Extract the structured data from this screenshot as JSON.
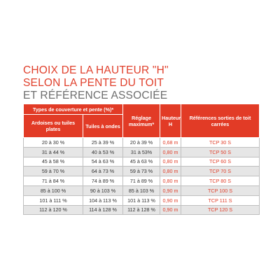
{
  "header": {
    "line1": "CHOIX DE LA HAUTEUR \"H\"",
    "line2": "SELON LA PENTE DU TOIT",
    "line3": "ET RÉFÉRENCE ASSOCIÉE"
  },
  "table": {
    "group_header": "Types de couverture et pente (%)*",
    "headers": [
      "Ardoises ou tuiles plates",
      "Tuiles à ondes",
      "Réglage maximum*",
      "Hauteur H",
      "Références sorties de toit carrées"
    ],
    "rows": [
      [
        "20 à 30 %",
        "25 à 39 %",
        "20 à 39 %",
        "0,68 m",
        "TCP 30 S"
      ],
      [
        "31 à 44 %",
        "40 à 53 %",
        "31 à 53%",
        "0,80 m",
        "TCP 50 S"
      ],
      [
        "45 à 58 %",
        "54 à 63 %",
        "45 à 63 %",
        "0,80 m",
        "TCP 60 S"
      ],
      [
        "59 à 70 %",
        "64 à 73 %",
        "59 à 73 %",
        "0,80 m",
        "TCP 70 S"
      ],
      [
        "71 à 84 %",
        "74 à 89 %",
        "71 à 89 %",
        "0,80 m",
        "TCP 80 S"
      ],
      [
        "85 à 100 %",
        "90 à 103 %",
        "85 à 103 %",
        "0,90 m",
        "TCP 100 S"
      ],
      [
        "101 à 111 %",
        "104 à 113 %",
        "101 à 113 %",
        "0,90 m",
        "TCP 111 S"
      ],
      [
        "112 à 120 %",
        "114 à 128 %",
        "112 à 128 %",
        "0,90 m",
        "TCP 120 S"
      ]
    ]
  }
}
